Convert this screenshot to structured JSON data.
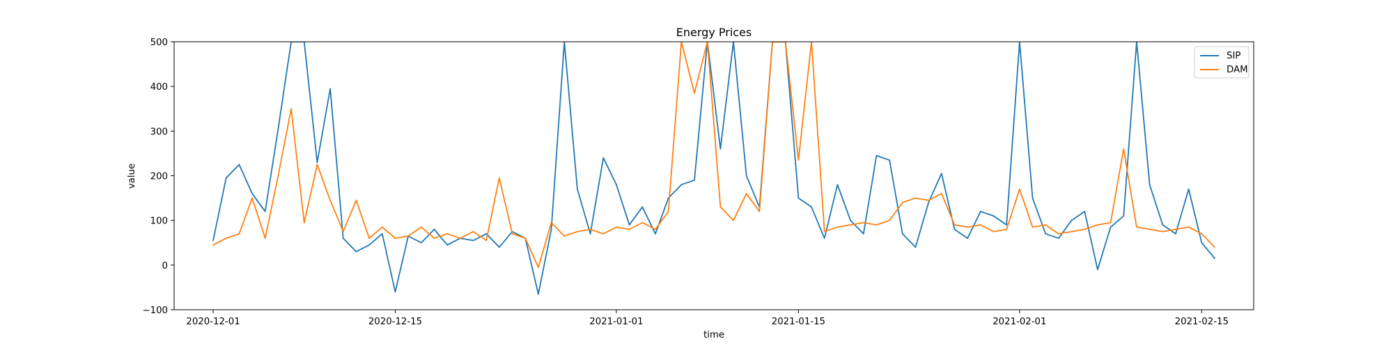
{
  "chart_data": {
    "type": "line",
    "title": "Energy Prices",
    "xlabel": "time",
    "ylabel": "value",
    "ylim": [
      -100,
      500
    ],
    "xlim": [
      "2020-11-28",
      "2021-02-19"
    ],
    "x_ticks": [
      "2020-12-01",
      "2020-12-15",
      "2021-01-01",
      "2021-01-15",
      "2021-02-01",
      "2021-02-15"
    ],
    "y_ticks": [
      -100,
      0,
      100,
      200,
      300,
      400,
      500
    ],
    "legend_position": "top-right",
    "grid": false,
    "series": [
      {
        "name": "SIP",
        "color": "#1f77b4",
        "x": [
          "2020-12-01",
          "2020-12-02",
          "2020-12-03",
          "2020-12-04",
          "2020-12-05",
          "2020-12-06",
          "2020-12-07",
          "2020-12-08",
          "2020-12-09",
          "2020-12-10",
          "2020-12-11",
          "2020-12-12",
          "2020-12-13",
          "2020-12-14",
          "2020-12-15",
          "2020-12-16",
          "2020-12-17",
          "2020-12-18",
          "2020-12-19",
          "2020-12-20",
          "2020-12-21",
          "2020-12-22",
          "2020-12-23",
          "2020-12-24",
          "2020-12-25",
          "2020-12-26",
          "2020-12-27",
          "2020-12-28",
          "2020-12-29",
          "2020-12-30",
          "2020-12-31",
          "2021-01-01",
          "2021-01-02",
          "2021-01-03",
          "2021-01-04",
          "2021-01-05",
          "2021-01-06",
          "2021-01-07",
          "2021-01-08",
          "2021-01-09",
          "2021-01-10",
          "2021-01-11",
          "2021-01-12",
          "2021-01-13",
          "2021-01-14",
          "2021-01-15",
          "2021-01-16",
          "2021-01-17",
          "2021-01-18",
          "2021-01-19",
          "2021-01-20",
          "2021-01-21",
          "2021-01-22",
          "2021-01-23",
          "2021-01-24",
          "2021-01-25",
          "2021-01-26",
          "2021-01-27",
          "2021-01-28",
          "2021-01-29",
          "2021-01-30",
          "2021-01-31",
          "2021-02-01",
          "2021-02-02",
          "2021-02-03",
          "2021-02-04",
          "2021-02-05",
          "2021-02-06",
          "2021-02-07",
          "2021-02-08",
          "2021-02-09",
          "2021-02-10",
          "2021-02-11",
          "2021-02-12",
          "2021-02-13",
          "2021-02-14",
          "2021-02-15",
          "2021-02-16"
        ],
        "y": [
          55,
          195,
          225,
          160,
          120,
          305,
          500,
          500,
          230,
          395,
          60,
          30,
          45,
          70,
          -60,
          65,
          50,
          80,
          45,
          60,
          55,
          70,
          40,
          75,
          60,
          -65,
          80,
          500,
          170,
          70,
          240,
          180,
          90,
          130,
          70,
          150,
          180,
          190,
          500,
          260,
          500,
          200,
          130,
          500,
          500,
          150,
          130,
          60,
          180,
          100,
          70,
          245,
          235,
          70,
          40,
          140,
          205,
          80,
          60,
          120,
          110,
          90,
          500,
          150,
          70,
          60,
          100,
          120,
          -10,
          85,
          110,
          500,
          180,
          90,
          70,
          170,
          50,
          15
        ]
      },
      {
        "name": "DAM",
        "color": "#ff7f0e",
        "x": [
          "2020-12-01",
          "2020-12-02",
          "2020-12-03",
          "2020-12-04",
          "2020-12-05",
          "2020-12-06",
          "2020-12-07",
          "2020-12-08",
          "2020-12-09",
          "2020-12-10",
          "2020-12-11",
          "2020-12-12",
          "2020-12-13",
          "2020-12-14",
          "2020-12-15",
          "2020-12-16",
          "2020-12-17",
          "2020-12-18",
          "2020-12-19",
          "2020-12-20",
          "2020-12-21",
          "2020-12-22",
          "2020-12-23",
          "2020-12-24",
          "2020-12-25",
          "2020-12-26",
          "2020-12-27",
          "2020-12-28",
          "2020-12-29",
          "2020-12-30",
          "2020-12-31",
          "2021-01-01",
          "2021-01-02",
          "2021-01-03",
          "2021-01-04",
          "2021-01-05",
          "2021-01-06",
          "2021-01-07",
          "2021-01-08",
          "2021-01-09",
          "2021-01-10",
          "2021-01-11",
          "2021-01-12",
          "2021-01-13",
          "2021-01-14",
          "2021-01-15",
          "2021-01-16",
          "2021-01-17",
          "2021-01-18",
          "2021-01-19",
          "2021-01-20",
          "2021-01-21",
          "2021-01-22",
          "2021-01-23",
          "2021-01-24",
          "2021-01-25",
          "2021-01-26",
          "2021-01-27",
          "2021-01-28",
          "2021-01-29",
          "2021-01-30",
          "2021-01-31",
          "2021-02-01",
          "2021-02-02",
          "2021-02-03",
          "2021-02-04",
          "2021-02-05",
          "2021-02-06",
          "2021-02-07",
          "2021-02-08",
          "2021-02-09",
          "2021-02-10",
          "2021-02-11",
          "2021-02-12",
          "2021-02-13",
          "2021-02-14",
          "2021-02-15",
          "2021-02-16"
        ],
        "y": [
          45,
          60,
          70,
          150,
          60,
          200,
          350,
          95,
          225,
          145,
          75,
          145,
          60,
          85,
          60,
          65,
          85,
          60,
          70,
          60,
          75,
          55,
          195,
          70,
          60,
          -5,
          95,
          65,
          75,
          80,
          70,
          85,
          80,
          95,
          80,
          120,
          500,
          385,
          500,
          130,
          100,
          160,
          120,
          500,
          500,
          235,
          500,
          75,
          85,
          90,
          95,
          90,
          100,
          140,
          150,
          145,
          160,
          90,
          85,
          90,
          75,
          80,
          170,
          85,
          90,
          70,
          75,
          80,
          90,
          95,
          260,
          85,
          80,
          75,
          80,
          85,
          70,
          40
        ]
      }
    ]
  }
}
